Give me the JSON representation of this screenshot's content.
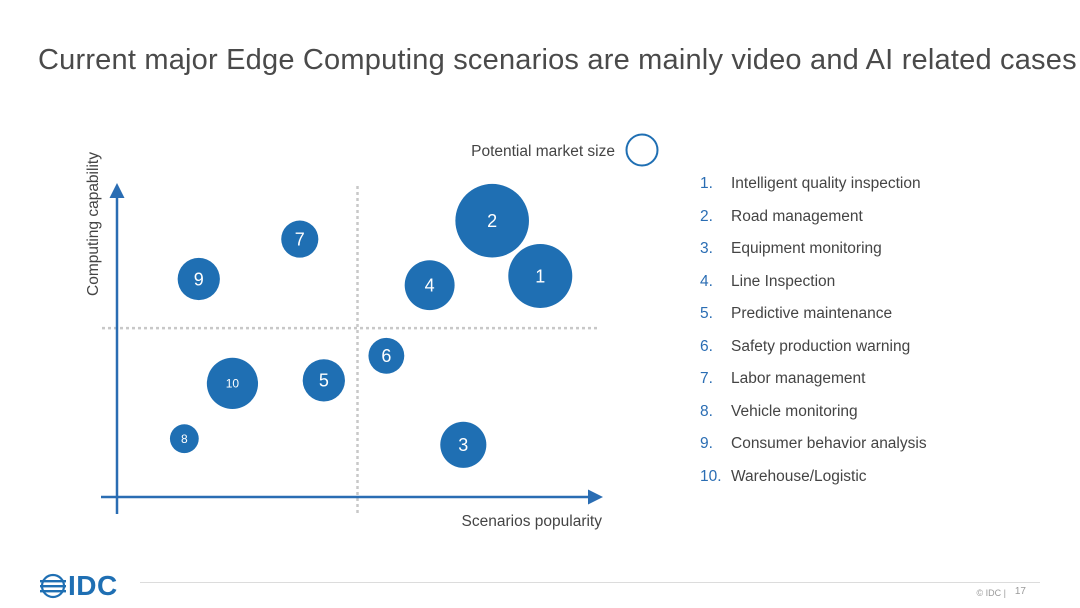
{
  "title": "Current major Edge Computing scenarios are mainly video and AI related cases",
  "chart_data": {
    "type": "scatter",
    "subtype": "bubble",
    "title": "Current major Edge Computing scenarios are mainly video and AI related cases",
    "xlabel": "Scenarios popularity",
    "ylabel": "Computing capability",
    "size_legend_label": "Potential market size",
    "xlim": [
      0,
      10
    ],
    "ylim": [
      0,
      10
    ],
    "quadrant_divider": {
      "x": 5.0,
      "y": 5.5
    },
    "points": [
      {
        "id": "1",
        "x": 8.8,
        "y": 7.2,
        "size": 1.0
      },
      {
        "id": "2",
        "x": 7.8,
        "y": 9.0,
        "size": 1.15
      },
      {
        "id": "3",
        "x": 7.2,
        "y": 1.7,
        "size": 0.72
      },
      {
        "id": "4",
        "x": 6.5,
        "y": 6.9,
        "size": 0.78
      },
      {
        "id": "5",
        "x": 4.3,
        "y": 3.8,
        "size": 0.66
      },
      {
        "id": "6",
        "x": 5.6,
        "y": 4.6,
        "size": 0.56
      },
      {
        "id": "7",
        "x": 3.8,
        "y": 8.4,
        "size": 0.58
      },
      {
        "id": "8",
        "x": 1.4,
        "y": 1.9,
        "size": 0.45
      },
      {
        "id": "9",
        "x": 1.7,
        "y": 7.1,
        "size": 0.66
      },
      {
        "id": "10",
        "x": 2.4,
        "y": 3.7,
        "size": 0.8
      }
    ],
    "colors": {
      "bubble": "#1f6fb3",
      "axis": "#2a6db3",
      "divider": "#c8c8c8",
      "label": "#ffffff"
    }
  },
  "legend": {
    "items": [
      {
        "num": "1.",
        "label": "Intelligent quality inspection"
      },
      {
        "num": "2.",
        "label": "Road management"
      },
      {
        "num": "3.",
        "label": "Equipment monitoring"
      },
      {
        "num": "4.",
        "label": "Line Inspection"
      },
      {
        "num": "5.",
        "label": "Predictive maintenance"
      },
      {
        "num": "6.",
        "label": "Safety production warning"
      },
      {
        "num": "7.",
        "label": "Labor management"
      },
      {
        "num": "8.",
        "label": "Vehicle monitoring"
      },
      {
        "num": "9.",
        "label": "Consumer behavior analysis"
      },
      {
        "num": "10.",
        "label": "Warehouse/Logistic"
      }
    ]
  },
  "footer": {
    "brand": "IDC",
    "copyright": "© IDC |",
    "page": "17"
  }
}
